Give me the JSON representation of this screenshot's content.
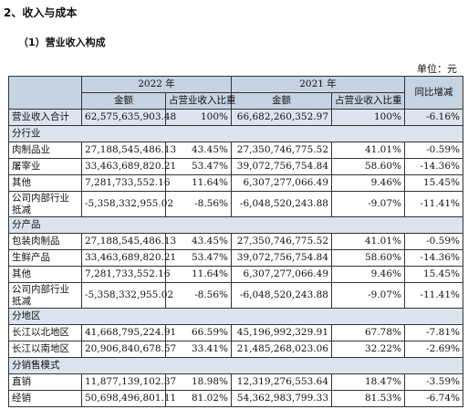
{
  "section_title": "2、收入与成本",
  "subsection_title": "（1）营业收入构成",
  "unit": "单位：元",
  "table": {
    "header": {
      "year_2022": "2022 年",
      "year_2021": "2021 年",
      "yoy": "同比增减",
      "amount": "金额",
      "ratio": "占营业收入比重"
    },
    "total": {
      "label": "营业收入合计",
      "a2022": "62,575,635,903.48",
      "r2022": "100%",
      "a2021": "66,682,260,352.97",
      "r2021": "100%",
      "yoy": "-6.16%"
    },
    "groups": [
      {
        "title": "分行业",
        "rows": [
          {
            "label": "肉制品业",
            "a2022": "27,188,545,486.13",
            "r2022": "43.45%",
            "a2021": "27,350,746,775.52",
            "r2021": "41.01%",
            "yoy": "-0.59%"
          },
          {
            "label": "屠宰业",
            "a2022": "33,463,689,820.21",
            "r2022": "53.47%",
            "a2021": "39,072,756,754.84",
            "r2021": "58.60%",
            "yoy": "-14.36%"
          },
          {
            "label": "其他",
            "a2022": "7,281,733,552.16",
            "r2022": "11.64%",
            "a2021": "6,307,277,066.49",
            "r2021": "9.46%",
            "yoy": "15.45%"
          },
          {
            "label": "公司内部行业抵减",
            "a2022": "-5,358,332,955.02",
            "r2022": "-8.56%",
            "a2021": "-6,048,520,243.88",
            "r2021": "-9.07%",
            "yoy": "-11.41%"
          }
        ]
      },
      {
        "title": "分产品",
        "rows": [
          {
            "label": "包装肉制品",
            "a2022": "27,188,545,486.13",
            "r2022": "43.45%",
            "a2021": "27,350,746,775.52",
            "r2021": "41.01%",
            "yoy": "-0.59%"
          },
          {
            "label": "生鲜产品",
            "a2022": "33,463,689,820.21",
            "r2022": "53.47%",
            "a2021": "39,072,756,754.84",
            "r2021": "58.60%",
            "yoy": "-14.36%"
          },
          {
            "label": "其他",
            "a2022": "7,281,733,552.16",
            "r2022": "11.64%",
            "a2021": "6,307,277,066.49",
            "r2021": "9.46%",
            "yoy": "15.45%"
          },
          {
            "label": "公司内部行业抵减",
            "a2022": "-5,358,332,955.02",
            "r2022": "-8.56%",
            "a2021": "-6,048,520,243.88",
            "r2021": "-9.07%",
            "yoy": "-11.41%"
          }
        ]
      },
      {
        "title": "分地区",
        "rows": [
          {
            "label": "长江以北地区",
            "a2022": "41,668,795,224.91",
            "r2022": "66.59%",
            "a2021": "45,196,992,329.91",
            "r2021": "67.78%",
            "yoy": "-7.81%"
          },
          {
            "label": "长江以南地区",
            "a2022": "20,906,840,678.57",
            "r2022": "33.41%",
            "a2021": "21,485,268,023.06",
            "r2021": "32.22%",
            "yoy": "-2.69%"
          }
        ]
      },
      {
        "title": "分销售模式",
        "rows": [
          {
            "label": "直销",
            "a2022": "11,877,139,102.37",
            "r2022": "18.98%",
            "a2021": "12,319,276,553.64",
            "r2021": "18.47%",
            "yoy": "-3.59%"
          },
          {
            "label": "经销",
            "a2022": "50,698,496,801.11",
            "r2022": "81.02%",
            "a2021": "54,362,983,799.33",
            "r2021": "81.53%",
            "yoy": "-6.74%"
          }
        ]
      }
    ]
  }
}
